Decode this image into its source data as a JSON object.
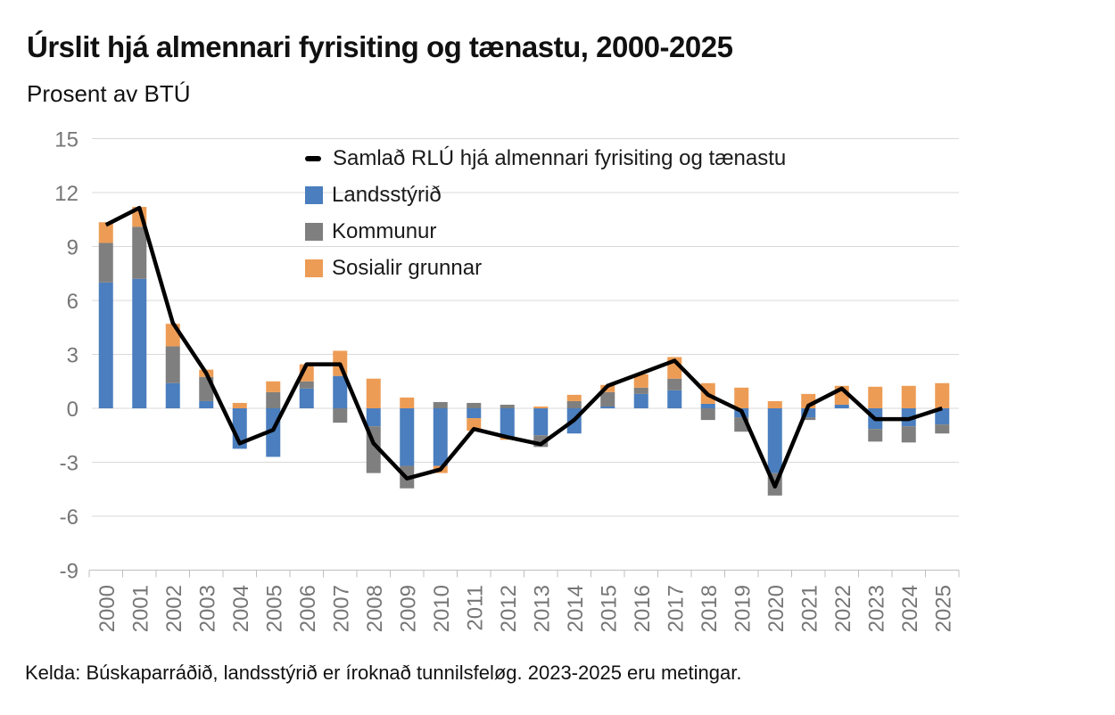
{
  "chart_data": {
    "type": "bar",
    "stacked": true,
    "title": "Úrslit hjá almennari fyrisiting og tænastu, 2000-2025",
    "subtitle": "Prosent av BTÚ",
    "source_note": "Kelda: Búskaparráðið, landsstýrið er íroknað tunnilsfeløg. 2023-2025 eru metingar.",
    "categories": [
      "2000",
      "2001",
      "2002",
      "2003",
      "2004",
      "2005",
      "2006",
      "2007",
      "2008",
      "2009",
      "2010",
      "2011",
      "2012",
      "2013",
      "2014",
      "2015",
      "2016",
      "2017",
      "2018",
      "2019",
      "2020",
      "2021",
      "2022",
      "2023",
      "2024",
      "2025"
    ],
    "yticks": [
      15,
      12,
      9,
      6,
      3,
      0,
      -3,
      -6,
      -9
    ],
    "ylim": [
      -9,
      15
    ],
    "grid": true,
    "legend_position": "top-right-inside",
    "series": [
      {
        "name": "Landsstýrið",
        "color": "#4A7EBE",
        "values": [
          7.0,
          7.2,
          1.4,
          0.4,
          -2.25,
          -2.7,
          1.1,
          1.8,
          -1.0,
          -3.2,
          -3.2,
          -0.55,
          -1.6,
          -1.5,
          -1.4,
          0.1,
          0.8,
          1.0,
          0.25,
          -0.5,
          -3.6,
          -0.5,
          0.2,
          -1.15,
          -1.0,
          -0.9
        ]
      },
      {
        "name": "Kommunur",
        "color": "#7F7F7F",
        "values": [
          2.2,
          2.9,
          2.05,
          1.35,
          0,
          0.9,
          0.4,
          -0.8,
          -2.6,
          -1.25,
          0.35,
          0.3,
          0.2,
          -0.65,
          0.4,
          0.8,
          0.35,
          0.65,
          -0.65,
          -0.8,
          -1.25,
          -0.15,
          0,
          -0.7,
          -0.9,
          -0.5
        ]
      },
      {
        "name": "Sosialir grunnar",
        "color": "#ED9C55",
        "values": [
          1.15,
          1.1,
          1.25,
          0.4,
          0.3,
          0.6,
          0.95,
          1.4,
          1.65,
          0.6,
          -0.4,
          -0.7,
          -0.15,
          0.1,
          0.35,
          0.4,
          0.75,
          1.2,
          1.15,
          1.15,
          0.4,
          0.8,
          1.05,
          1.2,
          1.25,
          1.4
        ]
      }
    ],
    "line_series": {
      "name": "Samlað RLÚ hjá almennari fyrisiting og tænastu",
      "color": "#000000",
      "values": [
        10.2,
        11.15,
        4.75,
        1.95,
        -1.95,
        -1.2,
        2.45,
        2.45,
        -1.95,
        -3.9,
        -3.4,
        -1.15,
        -1.6,
        -2.0,
        -0.65,
        1.25,
        1.95,
        2.65,
        0.75,
        -0.15,
        -4.35,
        0.15,
        1.1,
        -0.6,
        -0.6,
        0.0
      ]
    },
    "colors": {
      "grid": "#D9D9D9",
      "axis": "#BFBFBF",
      "tick_text": "#767676",
      "line": "#000000"
    }
  }
}
